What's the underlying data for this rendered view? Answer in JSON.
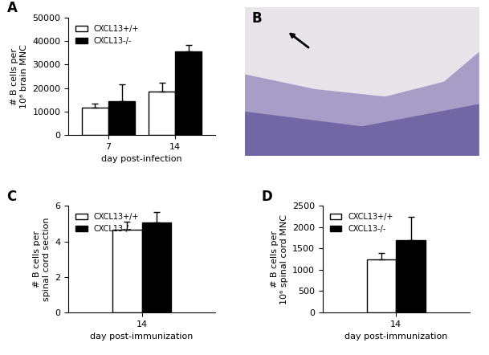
{
  "chart_data": [
    {
      "type": "bar",
      "title": "A",
      "x_label": "day post-infection",
      "y_label": "# B cells per\n10⁶ brain MNC",
      "categories": [
        "7",
        "14"
      ],
      "series": [
        {
          "name": "CXCL13+/+",
          "color": "#ffffff",
          "values": [
            11500,
            18500
          ],
          "errors": [
            1800,
            3800
          ]
        },
        {
          "name": "CXCL13-/-",
          "color": "#000000",
          "values": [
            14500,
            35500
          ],
          "errors": [
            7000,
            2800
          ]
        }
      ],
      "ylim": [
        0,
        50000
      ],
      "yticks": [
        0,
        10000,
        20000,
        30000,
        40000,
        50000
      ],
      "legend": "upper left"
    },
    {
      "type": "image",
      "title": "B"
    },
    {
      "type": "bar",
      "title": "C",
      "x_label": "day post-immunization",
      "y_label": "# B cells per\nspinal cord section",
      "categories": [
        "14"
      ],
      "series": [
        {
          "name": "CXCL13+/+",
          "color": "#ffffff",
          "values": [
            4.65
          ],
          "errors": [
            0.45
          ]
        },
        {
          "name": "CXCL13-/-",
          "color": "#000000",
          "values": [
            5.05
          ],
          "errors": [
            0.6
          ]
        }
      ],
      "ylim": [
        0,
        6
      ],
      "yticks": [
        0,
        2,
        4,
        6
      ],
      "legend": "upper left"
    },
    {
      "type": "bar",
      "title": "D",
      "x_label": "day post-immunization",
      "y_label": "# B cells per\n10⁶ spinal cord MNC",
      "categories": [
        "14"
      ],
      "series": [
        {
          "name": "CXCL13+/+",
          "color": "#ffffff",
          "values": [
            1250
          ],
          "errors": [
            150
          ]
        },
        {
          "name": "CXCL13-/-",
          "color": "#000000",
          "values": [
            1700
          ],
          "errors": [
            550
          ]
        }
      ],
      "ylim": [
        0,
        2500
      ],
      "yticks": [
        0,
        500,
        1000,
        1500,
        2000,
        2500
      ],
      "legend": "upper left"
    }
  ]
}
